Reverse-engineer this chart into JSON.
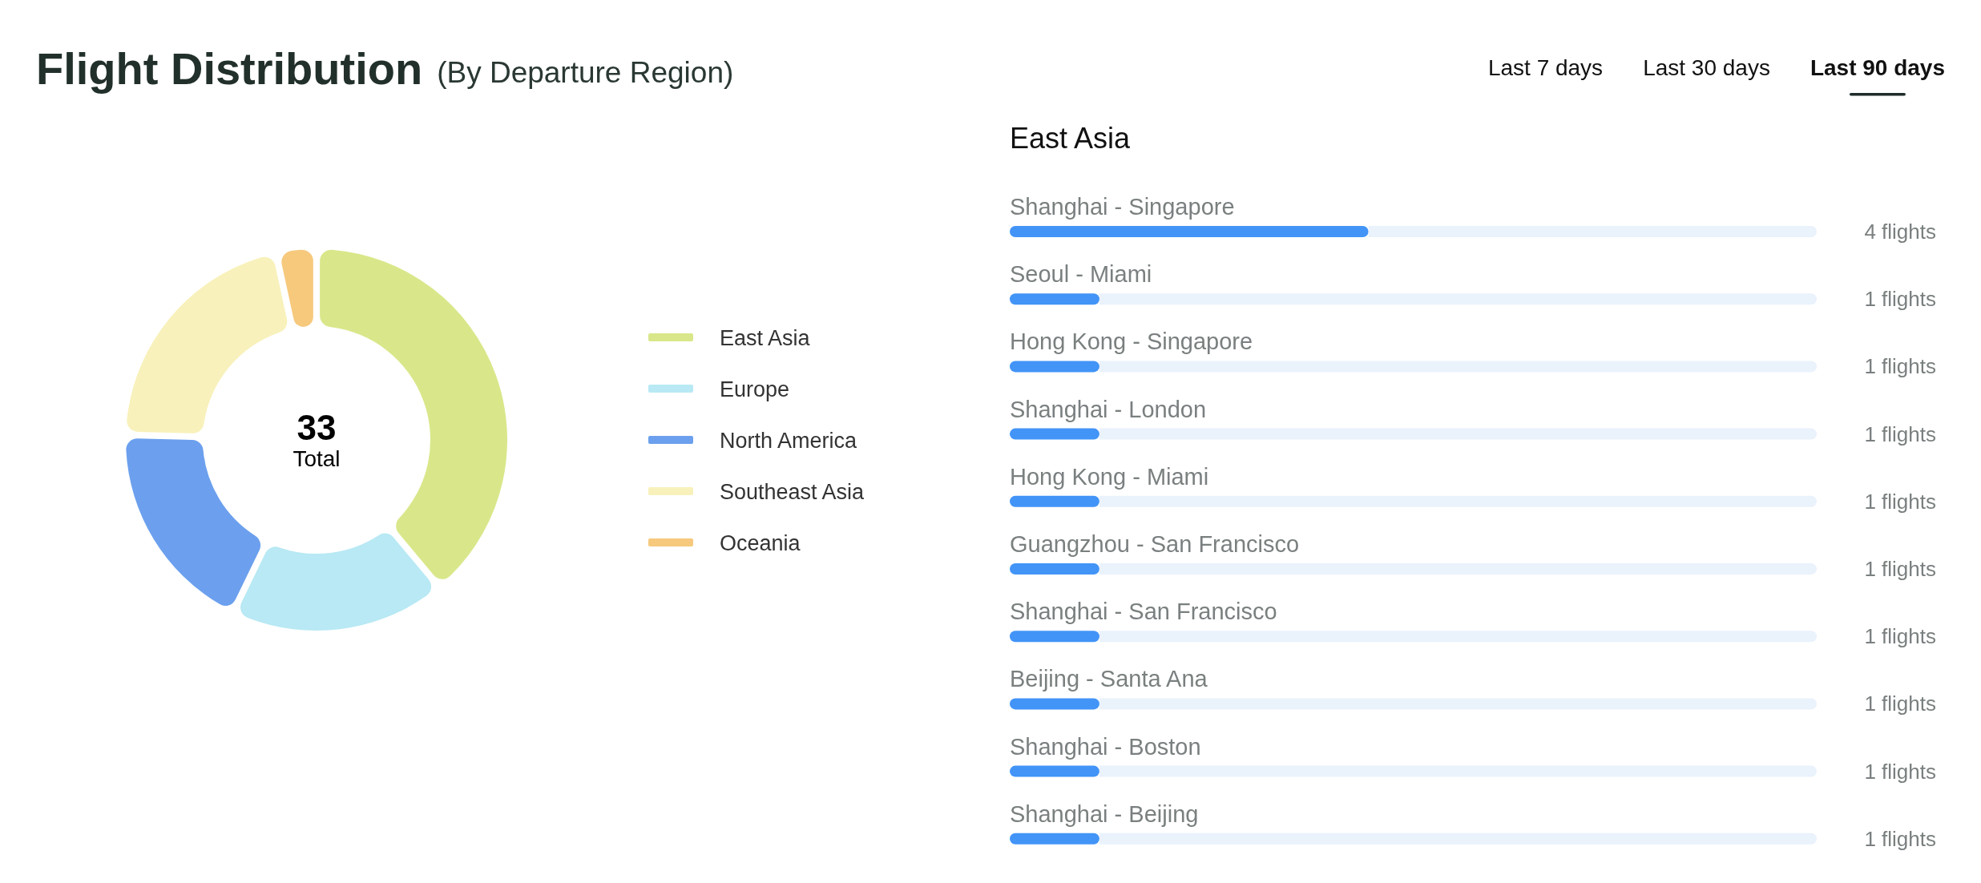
{
  "chart_data": [
    {
      "type": "donut",
      "title": "Flight Distribution",
      "subtitle": "(By Departure Region)",
      "categories": [
        "East Asia",
        "Europe",
        "North America",
        "Southeast Asia",
        "Oceania"
      ],
      "values": [
        39.4,
        18.2,
        18.2,
        21.2,
        3.0
      ],
      "colors": [
        "#d9e78a",
        "#b8e9f4",
        "#6ca0ee",
        "#f8f1bb",
        "#f6c97d"
      ],
      "legend": "right",
      "annotations": [
        "33",
        "Total"
      ]
    },
    {
      "type": "bar",
      "orientation": "horizontal",
      "title": "East Asia",
      "categories": [
        "Shanghai - Singapore",
        "Seoul - Miami",
        "Hong Kong - Singapore",
        "Shanghai - London",
        "Hong Kong - Miami",
        "Guangzhou - San Francisco",
        "Shanghai - San Francisco",
        "Beijing - Santa Ana",
        "Shanghai - Boston",
        "Shanghai - Beijing"
      ],
      "values": [
        4,
        1,
        1,
        1,
        1,
        1,
        1,
        1,
        1,
        1
      ],
      "color": "#4294f7",
      "xlim": [
        0,
        9
      ],
      "tick_labels": "y",
      "value_labels": [
        "4 flights",
        "1 flights",
        "1 flights",
        "1 flights",
        "1 flights",
        "1 flights",
        "1 flights",
        "1 flights",
        "1 flights",
        "1 flights"
      ]
    },
    {
      "type": "other",
      "annotations": [
        "Last 7 days",
        "Last 30 days",
        "Last 90 days"
      ]
    }
  ]
}
